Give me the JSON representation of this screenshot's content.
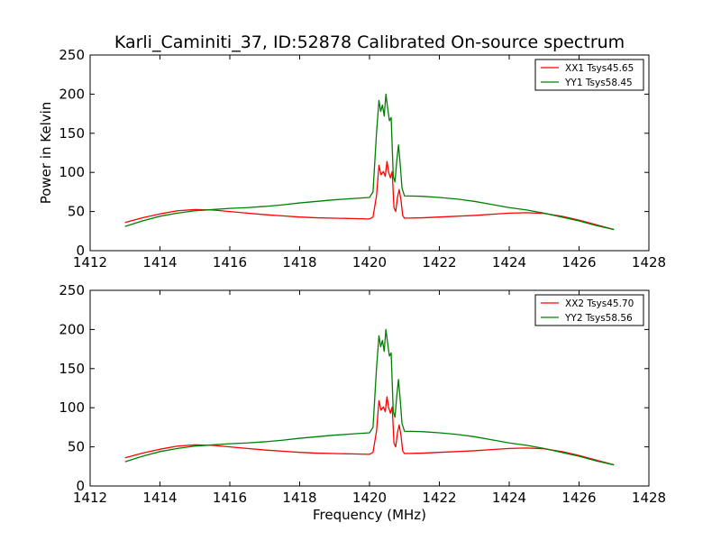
{
  "title": "Karli_Caminiti_37, ID:52878 Calibrated On-source spectrum",
  "chart_data": [
    {
      "type": "line",
      "ylabel": "Power in Kelvin",
      "xlabel": "",
      "xlim": [
        1412,
        1428
      ],
      "ylim": [
        0,
        250
      ],
      "xticks": [
        1412,
        1414,
        1416,
        1418,
        1420,
        1422,
        1424,
        1426,
        1428
      ],
      "yticks": [
        0,
        50,
        100,
        150,
        200,
        250
      ],
      "legend_position": "top-right",
      "series": [
        {
          "name": "XX1 Tsys45.65",
          "color": "#ff0000",
          "points": [
            [
              1413.0,
              36
            ],
            [
              1413.5,
              42
            ],
            [
              1414.0,
              47
            ],
            [
              1414.5,
              51
            ],
            [
              1415.0,
              52.5
            ],
            [
              1415.5,
              52
            ],
            [
              1416.0,
              50
            ],
            [
              1416.5,
              48
            ],
            [
              1417.0,
              46
            ],
            [
              1417.5,
              44.5
            ],
            [
              1418.0,
              43
            ],
            [
              1418.5,
              42
            ],
            [
              1419.0,
              41.5
            ],
            [
              1419.5,
              41
            ],
            [
              1420.0,
              40.5
            ],
            [
              1420.1,
              43
            ],
            [
              1420.2,
              70
            ],
            [
              1420.27,
              109
            ],
            [
              1420.33,
              97
            ],
            [
              1420.4,
              101
            ],
            [
              1420.45,
              95
            ],
            [
              1420.5,
              114
            ],
            [
              1420.55,
              100
            ],
            [
              1420.6,
              93
            ],
            [
              1420.65,
              101
            ],
            [
              1420.7,
              55
            ],
            [
              1420.75,
              50
            ],
            [
              1420.8,
              68
            ],
            [
              1420.85,
              78
            ],
            [
              1420.9,
              65
            ],
            [
              1420.95,
              45
            ],
            [
              1421.0,
              41.5
            ],
            [
              1421.5,
              42
            ],
            [
              1422.0,
              43
            ],
            [
              1422.5,
              44
            ],
            [
              1423.0,
              45
            ],
            [
              1423.5,
              46.5
            ],
            [
              1424.0,
              48
            ],
            [
              1424.5,
              48.5
            ],
            [
              1425.0,
              47.5
            ],
            [
              1425.5,
              44
            ],
            [
              1426.0,
              39
            ],
            [
              1426.5,
              33
            ],
            [
              1427.0,
              27
            ]
          ]
        },
        {
          "name": "YY1 Tsys58.45",
          "color": "#008000",
          "points": [
            [
              1413.0,
              31
            ],
            [
              1413.5,
              38
            ],
            [
              1414.0,
              44
            ],
            [
              1414.5,
              48
            ],
            [
              1415.0,
              51
            ],
            [
              1415.5,
              52.5
            ],
            [
              1416.0,
              54
            ],
            [
              1416.5,
              55
            ],
            [
              1417.0,
              56.5
            ],
            [
              1417.5,
              58.5
            ],
            [
              1418.0,
              61
            ],
            [
              1418.5,
              63
            ],
            [
              1419.0,
              65
            ],
            [
              1419.5,
              66.5
            ],
            [
              1420.0,
              68
            ],
            [
              1420.1,
              75
            ],
            [
              1420.2,
              150
            ],
            [
              1420.27,
              192
            ],
            [
              1420.32,
              178
            ],
            [
              1420.37,
              186
            ],
            [
              1420.42,
              172
            ],
            [
              1420.47,
              200
            ],
            [
              1420.52,
              182
            ],
            [
              1420.57,
              166
            ],
            [
              1420.62,
              170
            ],
            [
              1420.68,
              95
            ],
            [
              1420.73,
              88
            ],
            [
              1420.78,
              115
            ],
            [
              1420.83,
              135
            ],
            [
              1420.88,
              110
            ],
            [
              1420.93,
              80
            ],
            [
              1421.0,
              70
            ],
            [
              1421.5,
              69.5
            ],
            [
              1422.0,
              68
            ],
            [
              1422.5,
              66
            ],
            [
              1423.0,
              63
            ],
            [
              1423.5,
              59
            ],
            [
              1424.0,
              55
            ],
            [
              1424.5,
              52
            ],
            [
              1425.0,
              48
            ],
            [
              1425.5,
              43
            ],
            [
              1426.0,
              38
            ],
            [
              1426.5,
              32
            ],
            [
              1427.0,
              27
            ]
          ]
        }
      ]
    },
    {
      "type": "line",
      "ylabel": "",
      "xlabel": "Frequency (MHz)",
      "xlim": [
        1412,
        1428
      ],
      "ylim": [
        0,
        250
      ],
      "xticks": [
        1412,
        1414,
        1416,
        1418,
        1420,
        1422,
        1424,
        1426,
        1428
      ],
      "yticks": [
        0,
        50,
        100,
        150,
        200,
        250
      ],
      "legend_position": "top-right",
      "series": [
        {
          "name": "XX2 Tsys45.70",
          "color": "#ff0000",
          "points": [
            [
              1413.0,
              36
            ],
            [
              1413.5,
              42
            ],
            [
              1414.0,
              47
            ],
            [
              1414.5,
              51
            ],
            [
              1415.0,
              52.5
            ],
            [
              1415.5,
              52
            ],
            [
              1416.0,
              50
            ],
            [
              1416.5,
              48
            ],
            [
              1417.0,
              46
            ],
            [
              1417.5,
              44.5
            ],
            [
              1418.0,
              43
            ],
            [
              1418.5,
              42
            ],
            [
              1419.0,
              41.5
            ],
            [
              1419.5,
              41
            ],
            [
              1420.0,
              40.5
            ],
            [
              1420.1,
              43
            ],
            [
              1420.2,
              70
            ],
            [
              1420.27,
              109
            ],
            [
              1420.33,
              97
            ],
            [
              1420.4,
              101
            ],
            [
              1420.45,
              95
            ],
            [
              1420.5,
              114
            ],
            [
              1420.55,
              100
            ],
            [
              1420.6,
              93
            ],
            [
              1420.65,
              101
            ],
            [
              1420.7,
              55
            ],
            [
              1420.75,
              50
            ],
            [
              1420.8,
              68
            ],
            [
              1420.85,
              78
            ],
            [
              1420.9,
              65
            ],
            [
              1420.95,
              45
            ],
            [
              1421.0,
              41.5
            ],
            [
              1421.5,
              42
            ],
            [
              1422.0,
              43
            ],
            [
              1422.5,
              44
            ],
            [
              1423.0,
              45
            ],
            [
              1423.5,
              46.5
            ],
            [
              1424.0,
              48
            ],
            [
              1424.5,
              48.5
            ],
            [
              1425.0,
              47.5
            ],
            [
              1425.5,
              44
            ],
            [
              1426.0,
              39
            ],
            [
              1426.5,
              33
            ],
            [
              1427.0,
              27
            ]
          ]
        },
        {
          "name": "YY2 Tsys58.56",
          "color": "#008000",
          "points": [
            [
              1413.0,
              31
            ],
            [
              1413.5,
              38
            ],
            [
              1414.0,
              44
            ],
            [
              1414.5,
              48
            ],
            [
              1415.0,
              51
            ],
            [
              1415.5,
              52.5
            ],
            [
              1416.0,
              54
            ],
            [
              1416.5,
              55
            ],
            [
              1417.0,
              56.5
            ],
            [
              1417.5,
              58.5
            ],
            [
              1418.0,
              61
            ],
            [
              1418.5,
              63
            ],
            [
              1419.0,
              65
            ],
            [
              1419.5,
              66.5
            ],
            [
              1420.0,
              68
            ],
            [
              1420.1,
              75
            ],
            [
              1420.2,
              150
            ],
            [
              1420.27,
              192
            ],
            [
              1420.32,
              178
            ],
            [
              1420.37,
              186
            ],
            [
              1420.42,
              172
            ],
            [
              1420.47,
              200
            ],
            [
              1420.52,
              182
            ],
            [
              1420.57,
              166
            ],
            [
              1420.62,
              170
            ],
            [
              1420.68,
              95
            ],
            [
              1420.73,
              88
            ],
            [
              1420.78,
              115
            ],
            [
              1420.83,
              136
            ],
            [
              1420.88,
              110
            ],
            [
              1420.93,
              80
            ],
            [
              1421.0,
              70
            ],
            [
              1421.5,
              69.5
            ],
            [
              1422.0,
              68
            ],
            [
              1422.5,
              66
            ],
            [
              1423.0,
              63
            ],
            [
              1423.5,
              59
            ],
            [
              1424.0,
              55
            ],
            [
              1424.5,
              52
            ],
            [
              1425.0,
              48
            ],
            [
              1425.5,
              43
            ],
            [
              1426.0,
              38
            ],
            [
              1426.5,
              32
            ],
            [
              1427.0,
              27
            ]
          ]
        }
      ]
    }
  ]
}
